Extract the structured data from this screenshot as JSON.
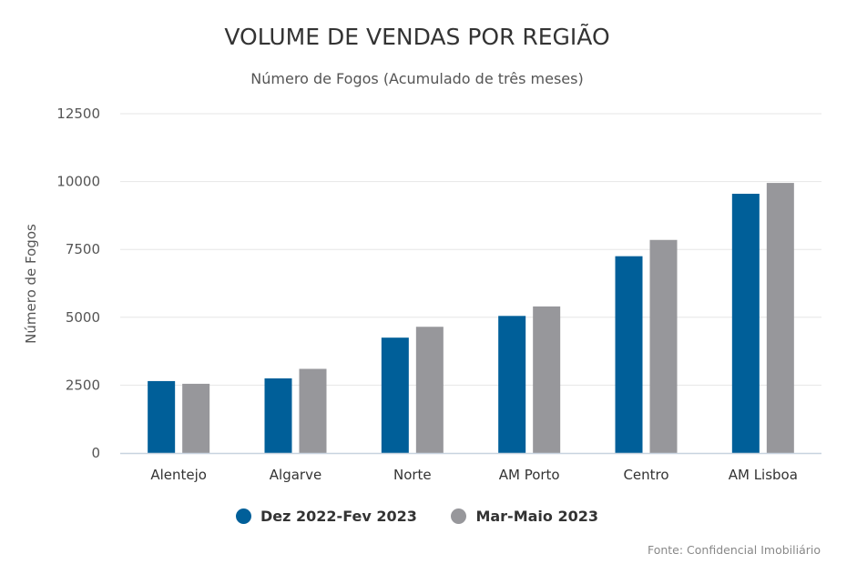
{
  "chart_data": {
    "type": "bar",
    "title": "VOLUME DE VENDAS POR REGIÃO",
    "subtitle": "Número de Fogos (Acumulado de três meses)",
    "ylabel": "Número de Fogos",
    "xlabel": "",
    "ylim": [
      0,
      12500
    ],
    "yticks": [
      "0",
      "2500",
      "5000",
      "7500",
      "10000",
      "12500"
    ],
    "grid": true,
    "legend_position": "bottom-center",
    "categories": [
      "Alentejo",
      "Algarve",
      "Norte",
      "AM Porto",
      "Centro",
      "AM Lisboa"
    ],
    "series": [
      {
        "name": "Dez 2022-Fev 2023",
        "color": "#005f99",
        "values": [
          2650,
          2750,
          4250,
          5050,
          7250,
          9550
        ]
      },
      {
        "name": "Mar-Maio 2023",
        "color": "#97979b",
        "values": [
          2550,
          3100,
          4650,
          5400,
          7850,
          9950
        ]
      }
    ],
    "source": "Fonte: Confidencial Imobiliário"
  }
}
